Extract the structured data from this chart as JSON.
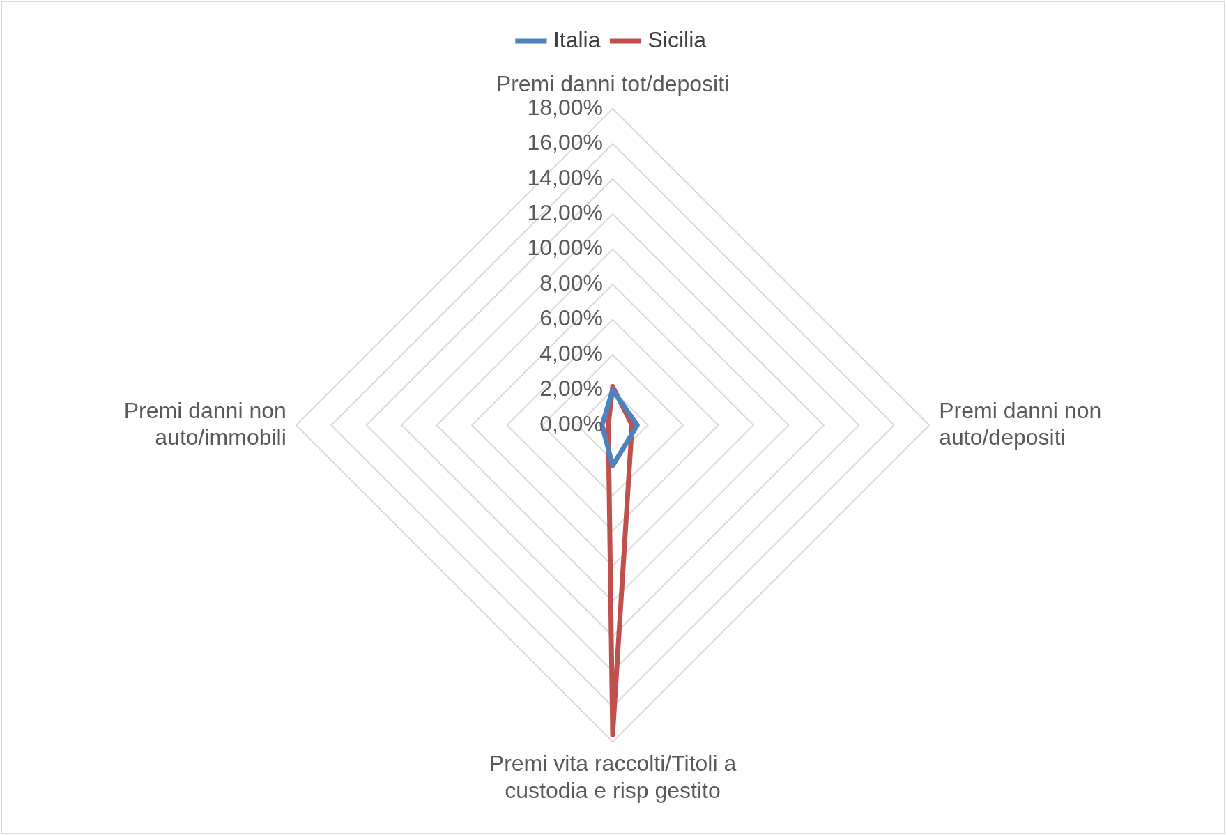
{
  "chart_data": {
    "type": "radar",
    "categories": [
      "Premi danni tot/depositi",
      "Premi danni non auto/depositi",
      "Premi vita raccolti/Titoli a custodia e risp gestito",
      "Premi danni non auto/immobili"
    ],
    "series": [
      {
        "name": "Italia",
        "color": "#4f81bd",
        "values": [
          2.0,
          1.4,
          2.3,
          0.6
        ]
      },
      {
        "name": "Sicilia",
        "color": "#c0504d",
        "values": [
          2.2,
          1.1,
          17.6,
          0.25
        ]
      }
    ],
    "ylim": [
      0,
      18
    ],
    "yticks": [
      {
        "value": 0,
        "label": "0,00%"
      },
      {
        "value": 2,
        "label": "2,00%"
      },
      {
        "value": 4,
        "label": "4,00%"
      },
      {
        "value": 6,
        "label": "6,00%"
      },
      {
        "value": 8,
        "label": "8,00%"
      },
      {
        "value": 10,
        "label": "10,00%"
      },
      {
        "value": 12,
        "label": "12,00%"
      },
      {
        "value": 14,
        "label": "14,00%"
      },
      {
        "value": 16,
        "label": "16,00%"
      },
      {
        "value": 18,
        "label": "18,00%"
      }
    ],
    "grid": true,
    "legend": "top",
    "marker": "none"
  }
}
